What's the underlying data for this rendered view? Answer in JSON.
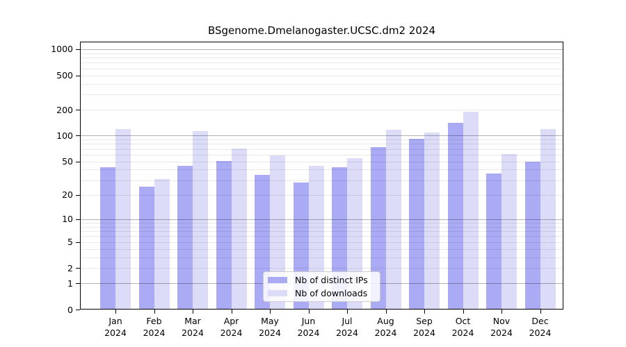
{
  "figure": {
    "background": "#ffffff",
    "text_color": "#000000"
  },
  "chart_data": {
    "type": "bar",
    "title": "BSgenome.Dmelanogaster.UCSC.dm2 2024",
    "categories": [
      "Jan",
      "Feb",
      "Mar",
      "Apr",
      "May",
      "Jun",
      "Jul",
      "Aug",
      "Sep",
      "Oct",
      "Nov",
      "Dec"
    ],
    "year": "2024",
    "series": [
      {
        "name": "Nb of distinct IPs",
        "color": "#aaaaf5",
        "values": [
          43,
          25,
          44,
          51,
          35,
          28,
          43,
          74,
          92,
          140,
          36,
          50
        ]
      },
      {
        "name": "Nb of downloads",
        "color": "#dcdcf9",
        "values": [
          119,
          31,
          113,
          71,
          59,
          44,
          55,
          117,
          108,
          188,
          61,
          119
        ]
      }
    ],
    "y_axis": {
      "scale": "log1p",
      "tick_values": [
        0,
        1,
        2,
        5,
        10,
        20,
        50,
        100,
        200,
        500,
        1000
      ],
      "tick_labels": [
        "0",
        "1",
        "2",
        "5",
        "10",
        "20",
        "50",
        "100",
        "200",
        "500",
        "1000"
      ],
      "major_grid_values": [
        1,
        10,
        100,
        1000
      ],
      "minor_grid_values": [
        2,
        3,
        4,
        5,
        6,
        7,
        8,
        9,
        20,
        30,
        40,
        50,
        60,
        70,
        80,
        90,
        200,
        300,
        400,
        500,
        600,
        700,
        800,
        900
      ],
      "ylim": [
        0,
        1200
      ]
    },
    "legend": {
      "position": "inside-bottom-center"
    },
    "grid": true,
    "colors": {
      "grid_major": "rgba(0,0,0,0.30)",
      "grid_minor": "rgba(0,0,0,0.09)",
      "axis": "#000000"
    }
  }
}
